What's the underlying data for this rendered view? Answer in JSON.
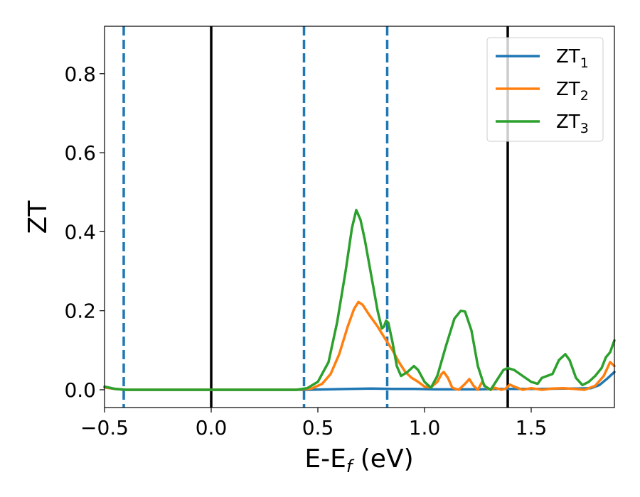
{
  "chart_data": {
    "type": "line",
    "xlabel": {
      "main": "E-E",
      "sub": "f",
      "unit": " (eV)"
    },
    "ylabel": "ZT",
    "xlim": [
      -0.5,
      1.89
    ],
    "ylim": [
      -0.045,
      0.92
    ],
    "xticks": [
      {
        "value": -0.5,
        "label": "−0.5"
      },
      {
        "value": 0.0,
        "label": "0.0"
      },
      {
        "value": 0.5,
        "label": "0.5"
      },
      {
        "value": 1.0,
        "label": "1.0"
      },
      {
        "value": 1.5,
        "label": "1.5"
      }
    ],
    "yticks": [
      {
        "value": 0.0,
        "label": "0.0"
      },
      {
        "value": 0.2,
        "label": "0.2"
      },
      {
        "value": 0.4,
        "label": "0.4"
      },
      {
        "value": 0.6,
        "label": "0.6"
      },
      {
        "value": 0.8,
        "label": "0.8"
      }
    ],
    "grid": false,
    "legend_position": "top-right",
    "vertical_lines": [
      {
        "x": -0.41,
        "style": "dashed",
        "color": "#1f77b4"
      },
      {
        "x": 0.0,
        "style": "solid",
        "color": "#000000"
      },
      {
        "x": 0.435,
        "style": "dashed",
        "color": "#1f77b4"
      },
      {
        "x": 0.825,
        "style": "dashed",
        "color": "#1f77b4"
      },
      {
        "x": 1.39,
        "style": "solid",
        "color": "#000000"
      }
    ],
    "series": [
      {
        "name": "ZT",
        "name_sub": "1",
        "color": "#1f77b4",
        "points": [
          [
            -0.5,
            0.006
          ],
          [
            -0.45,
            0.002
          ],
          [
            -0.4,
            0.0
          ],
          [
            0.0,
            0.0
          ],
          [
            0.44,
            0.0
          ],
          [
            0.55,
            0.001
          ],
          [
            0.65,
            0.002
          ],
          [
            0.75,
            0.003
          ],
          [
            0.85,
            0.002
          ],
          [
            0.95,
            0.002
          ],
          [
            1.05,
            0.001
          ],
          [
            1.15,
            0.001
          ],
          [
            1.25,
            0.001
          ],
          [
            1.35,
            0.002
          ],
          [
            1.45,
            0.002
          ],
          [
            1.55,
            0.002
          ],
          [
            1.65,
            0.003
          ],
          [
            1.72,
            0.003
          ],
          [
            1.78,
            0.004
          ],
          [
            1.82,
            0.012
          ],
          [
            1.86,
            0.03
          ],
          [
            1.89,
            0.045
          ]
        ]
      },
      {
        "name": "ZT",
        "name_sub": "2",
        "color": "#ff7f0e",
        "points": [
          [
            -0.5,
            0.006
          ],
          [
            -0.45,
            0.002
          ],
          [
            -0.4,
            0.0
          ],
          [
            0.0,
            0.0
          ],
          [
            0.4,
            0.0
          ],
          [
            0.47,
            0.003
          ],
          [
            0.52,
            0.015
          ],
          [
            0.56,
            0.04
          ],
          [
            0.6,
            0.09
          ],
          [
            0.64,
            0.16
          ],
          [
            0.67,
            0.205
          ],
          [
            0.69,
            0.222
          ],
          [
            0.71,
            0.215
          ],
          [
            0.74,
            0.19
          ],
          [
            0.78,
            0.16
          ],
          [
            0.82,
            0.125
          ],
          [
            0.85,
            0.1
          ],
          [
            0.88,
            0.07
          ],
          [
            0.91,
            0.045
          ],
          [
            0.94,
            0.03
          ],
          [
            0.97,
            0.02
          ],
          [
            1.0,
            0.008
          ],
          [
            1.03,
            0.006
          ],
          [
            1.06,
            0.02
          ],
          [
            1.08,
            0.04
          ],
          [
            1.09,
            0.045
          ],
          [
            1.11,
            0.03
          ],
          [
            1.13,
            0.005
          ],
          [
            1.16,
            0.0
          ],
          [
            1.19,
            0.015
          ],
          [
            1.21,
            0.027
          ],
          [
            1.23,
            0.01
          ],
          [
            1.25,
            0.0
          ],
          [
            1.27,
            0.02
          ],
          [
            1.29,
            0.005
          ],
          [
            1.31,
            0.0
          ],
          [
            1.33,
            0.005
          ],
          [
            1.36,
            0.0
          ],
          [
            1.38,
            0.003
          ],
          [
            1.4,
            0.013
          ],
          [
            1.42,
            0.008
          ],
          [
            1.46,
            0.0
          ],
          [
            1.5,
            0.004
          ],
          [
            1.55,
            0.0
          ],
          [
            1.6,
            0.003
          ],
          [
            1.65,
            0.004
          ],
          [
            1.7,
            0.002
          ],
          [
            1.75,
            0.0
          ],
          [
            1.8,
            0.01
          ],
          [
            1.84,
            0.035
          ],
          [
            1.87,
            0.07
          ],
          [
            1.89,
            0.06
          ]
        ]
      },
      {
        "name": "ZT",
        "name_sub": "3",
        "color": "#2ca02c",
        "points": [
          [
            -0.5,
            0.008
          ],
          [
            -0.45,
            0.002
          ],
          [
            -0.4,
            0.0
          ],
          [
            0.0,
            0.0
          ],
          [
            0.4,
            0.0
          ],
          [
            0.45,
            0.004
          ],
          [
            0.5,
            0.02
          ],
          [
            0.55,
            0.07
          ],
          [
            0.59,
            0.17
          ],
          [
            0.63,
            0.3
          ],
          [
            0.66,
            0.41
          ],
          [
            0.68,
            0.455
          ],
          [
            0.7,
            0.43
          ],
          [
            0.72,
            0.38
          ],
          [
            0.75,
            0.29
          ],
          [
            0.78,
            0.2
          ],
          [
            0.8,
            0.155
          ],
          [
            0.81,
            0.16
          ],
          [
            0.82,
            0.175
          ],
          [
            0.83,
            0.17
          ],
          [
            0.85,
            0.12
          ],
          [
            0.87,
            0.06
          ],
          [
            0.89,
            0.035
          ],
          [
            0.92,
            0.045
          ],
          [
            0.95,
            0.06
          ],
          [
            0.97,
            0.05
          ],
          [
            1.0,
            0.02
          ],
          [
            1.03,
            0.005
          ],
          [
            1.06,
            0.035
          ],
          [
            1.1,
            0.11
          ],
          [
            1.14,
            0.18
          ],
          [
            1.17,
            0.2
          ],
          [
            1.19,
            0.198
          ],
          [
            1.22,
            0.15
          ],
          [
            1.25,
            0.06
          ],
          [
            1.28,
            0.01
          ],
          [
            1.31,
            0.0
          ],
          [
            1.34,
            0.025
          ],
          [
            1.37,
            0.05
          ],
          [
            1.39,
            0.055
          ],
          [
            1.42,
            0.05
          ],
          [
            1.46,
            0.035
          ],
          [
            1.5,
            0.02
          ],
          [
            1.53,
            0.015
          ],
          [
            1.55,
            0.03
          ],
          [
            1.57,
            0.034
          ],
          [
            1.6,
            0.04
          ],
          [
            1.63,
            0.075
          ],
          [
            1.66,
            0.09
          ],
          [
            1.68,
            0.075
          ],
          [
            1.71,
            0.03
          ],
          [
            1.74,
            0.012
          ],
          [
            1.77,
            0.02
          ],
          [
            1.8,
            0.035
          ],
          [
            1.83,
            0.055
          ],
          [
            1.85,
            0.082
          ],
          [
            1.87,
            0.095
          ],
          [
            1.89,
            0.125
          ]
        ]
      }
    ]
  }
}
